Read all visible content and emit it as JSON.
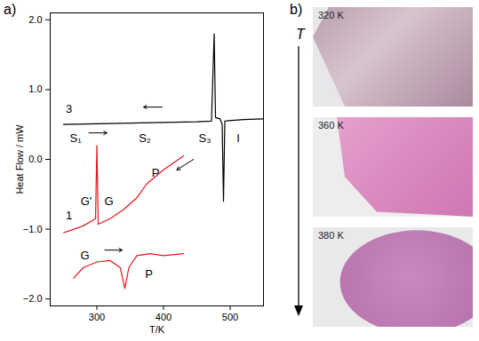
{
  "chart_data": {
    "type": "line",
    "panel_label": "a)",
    "xlabel": "T/K",
    "ylabel": "Heat Flow / mW",
    "xlim": [
      230,
      550
    ],
    "xticks": [
      300,
      400,
      500
    ],
    "ylim": [
      -2.1,
      2.1
    ],
    "yticks": [
      -2,
      -1,
      0,
      1,
      2
    ],
    "grid": false,
    "series": [
      {
        "color": "#000000",
        "x": [
          250,
          350,
          450,
          472,
          476,
          478,
          485,
          488,
          490,
          492,
          520,
          550
        ],
        "values": [
          0.5,
          0.52,
          0.54,
          0.55,
          1.8,
          0.6,
          0.58,
          0.5,
          -0.6,
          0.55,
          0.57,
          0.58
        ]
      },
      {
        "color": "#e8141e",
        "x": [
          430,
          400,
          375,
          360,
          340,
          320,
          302,
          300,
          298,
          280,
          260,
          250
        ],
        "values": [
          0.05,
          -0.15,
          -0.35,
          -0.55,
          -0.72,
          -0.85,
          -0.93,
          0.2,
          -0.85,
          -0.95,
          -1.02,
          -1.05
        ]
      },
      {
        "color": "#e8141e",
        "x": [
          265,
          280,
          300,
          320,
          335,
          342,
          348,
          360,
          380,
          400,
          430
        ],
        "values": [
          -1.7,
          -1.55,
          -1.47,
          -1.45,
          -1.55,
          -1.85,
          -1.55,
          -1.38,
          -1.35,
          -1.38,
          -1.35
        ]
      }
    ],
    "annotations": [
      {
        "text": "3",
        "x": 258,
        "y": 0.72,
        "color": "#000000"
      },
      {
        "text": "S₁",
        "x": 268,
        "y": 0.3,
        "color": "#000000"
      },
      {
        "text": "S₂",
        "x": 372,
        "y": 0.3,
        "color": "#000000"
      },
      {
        "text": "S₃",
        "x": 462,
        "y": 0.3,
        "color": "#000000"
      },
      {
        "text": "I",
        "x": 512,
        "y": 0.3,
        "color": "#000000"
      },
      {
        "text": "1",
        "x": 258,
        "y": -0.8,
        "color": "#000000"
      },
      {
        "text": "G'",
        "x": 284,
        "y": -0.6,
        "color": "#000000"
      },
      {
        "text": "G",
        "x": 318,
        "y": -0.6,
        "color": "#000000"
      },
      {
        "text": "P",
        "x": 388,
        "y": -0.2,
        "color": "#000000"
      },
      {
        "text": "G",
        "x": 282,
        "y": -1.38,
        "color": "#000000"
      },
      {
        "text": "P",
        "x": 378,
        "y": -1.65,
        "color": "#000000"
      }
    ],
    "arrows": [
      {
        "x1": 288,
        "y1": 0.38,
        "x2": 315,
        "y2": 0.38,
        "color": "#000000"
      },
      {
        "x1": 398,
        "y1": 0.75,
        "x2": 370,
        "y2": 0.75,
        "color": "#000000"
      },
      {
        "x1": 445,
        "y1": 0.0,
        "x2": 420,
        "y2": -0.15,
        "color": "#000000"
      },
      {
        "x1": 312,
        "y1": -1.3,
        "x2": 338,
        "y2": -1.3,
        "color": "#000000"
      }
    ]
  },
  "panel_b": {
    "label": "b)",
    "axis_label": "T",
    "images": [
      {
        "label": "320 K"
      },
      {
        "label": "360 K"
      },
      {
        "label": "380 K"
      }
    ]
  }
}
